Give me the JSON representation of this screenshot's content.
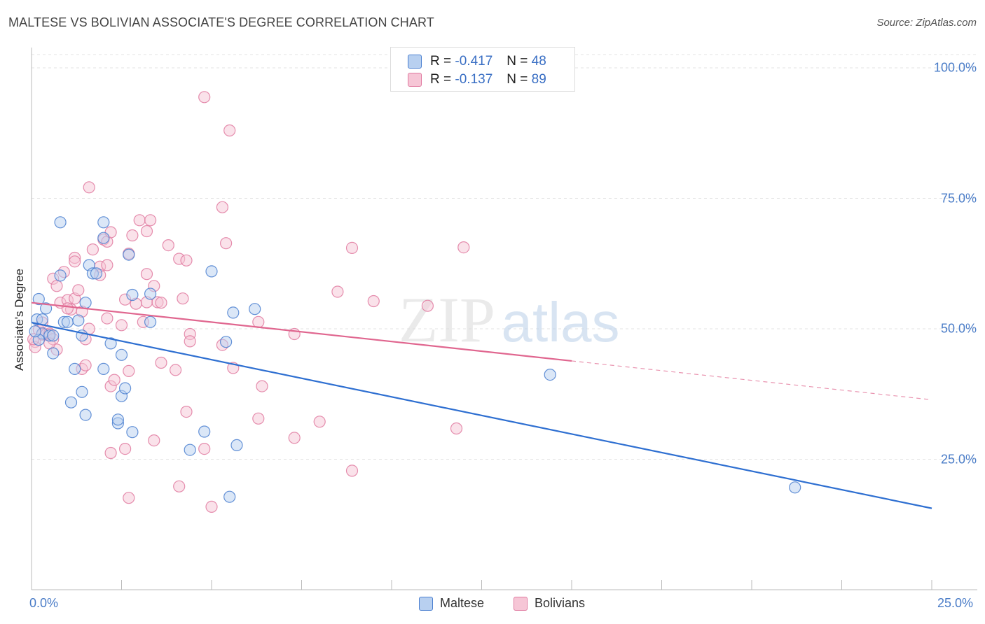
{
  "header": {
    "title": "MALTESE VS BOLIVIAN ASSOCIATE'S DEGREE CORRELATION CHART",
    "source": "Source: ZipAtlas.com"
  },
  "colors": {
    "maltese": "#4a7fd0",
    "maltese_fill": "#b8d0f0",
    "bolivians": "#e07aa0",
    "bolivians_fill": "#f6c6d6",
    "axis_text": "#4a7cc7"
  },
  "legend": {
    "maltese": {
      "r_label": "R =",
      "r_value": "-0.417",
      "n_label": "N =",
      "n_value": "48"
    },
    "bolivians": {
      "r_label": "R =",
      "r_value": "-0.137",
      "n_label": "N =",
      "n_value": "89"
    }
  },
  "bottom_legend": {
    "maltese": "Maltese",
    "bolivians": "Bolivians"
  },
  "chart_data": {
    "type": "scatter",
    "title": "MALTESE VS BOLIVIAN ASSOCIATE'S DEGREE CORRELATION CHART",
    "xlabel": "",
    "ylabel": "Associate's Degree",
    "xlim": [
      0,
      25
    ],
    "ylim": [
      0,
      102
    ],
    "y_ticks": [
      {
        "value": 100,
        "label": "100.0%"
      },
      {
        "value": 75,
        "label": "75.0%"
      },
      {
        "value": 50,
        "label": "50.0%"
      },
      {
        "value": 25,
        "label": "25.0%"
      }
    ],
    "x_tick_labels": {
      "left": "0.0%",
      "right": "25.0%"
    },
    "watermark": {
      "zip": "ZIP",
      "atlas": "atlas"
    },
    "series": [
      {
        "name": "Maltese",
        "trend": {
          "x0": 0,
          "y0": 51.2,
          "x1": 25,
          "y1": 15.6,
          "dashed_from": null
        },
        "points": [
          [
            0.2,
            55.7
          ],
          [
            0.15,
            51.8
          ],
          [
            0.3,
            51.8
          ],
          [
            0.4,
            53.9
          ],
          [
            0.3,
            49.1
          ],
          [
            0.5,
            48.7
          ],
          [
            0.2,
            47.9
          ],
          [
            0.6,
            48.7
          ],
          [
            0.6,
            45.3
          ],
          [
            0.9,
            51.3
          ],
          [
            1.0,
            51.3
          ],
          [
            1.3,
            51.6
          ],
          [
            1.4,
            48.7
          ],
          [
            0.8,
            60.2
          ],
          [
            0.8,
            70.4
          ],
          [
            1.5,
            55.0
          ],
          [
            1.6,
            62.2
          ],
          [
            1.7,
            60.6
          ],
          [
            1.8,
            60.6
          ],
          [
            2.0,
            70.4
          ],
          [
            2.0,
            67.4
          ],
          [
            2.7,
            64.2
          ],
          [
            2.8,
            56.5
          ],
          [
            3.3,
            56.7
          ],
          [
            3.3,
            51.3
          ],
          [
            2.2,
            47.2
          ],
          [
            2.5,
            45.0
          ],
          [
            1.2,
            42.3
          ],
          [
            2.0,
            42.3
          ],
          [
            1.4,
            37.9
          ],
          [
            1.1,
            35.9
          ],
          [
            1.5,
            33.5
          ],
          [
            2.5,
            37.1
          ],
          [
            2.6,
            38.6
          ],
          [
            2.4,
            31.9
          ],
          [
            2.4,
            32.6
          ],
          [
            2.8,
            30.2
          ],
          [
            5.0,
            61.0
          ],
          [
            5.6,
            53.1
          ],
          [
            6.2,
            53.8
          ],
          [
            5.4,
            47.5
          ],
          [
            4.8,
            30.3
          ],
          [
            4.4,
            26.8
          ],
          [
            5.7,
            27.7
          ],
          [
            5.5,
            17.8
          ],
          [
            14.4,
            41.2
          ],
          [
            21.2,
            19.6
          ],
          [
            0.1,
            49.5
          ]
        ]
      },
      {
        "name": "Bolivians",
        "trend": {
          "x0": 0,
          "y0": 55.0,
          "x1": 25,
          "y1": 36.4,
          "dashed_from": 15
        },
        "points": [
          [
            0.1,
            47.5
          ],
          [
            0.1,
            46.5
          ],
          [
            0.2,
            49.8
          ],
          [
            0.3,
            48.9
          ],
          [
            0.4,
            48.9
          ],
          [
            0.5,
            48.9
          ],
          [
            0.5,
            49.1
          ],
          [
            0.6,
            48.0
          ],
          [
            0.7,
            46.0
          ],
          [
            0.6,
            59.6
          ],
          [
            0.7,
            58.2
          ],
          [
            0.9,
            60.9
          ],
          [
            0.8,
            55.0
          ],
          [
            1.0,
            55.5
          ],
          [
            1.1,
            53.7
          ],
          [
            1.2,
            55.8
          ],
          [
            1.3,
            57.4
          ],
          [
            1.4,
            53.3
          ],
          [
            1.2,
            63.6
          ],
          [
            1.2,
            62.9
          ],
          [
            1.4,
            42.3
          ],
          [
            1.5,
            43.0
          ],
          [
            1.6,
            50.0
          ],
          [
            1.7,
            65.2
          ],
          [
            1.9,
            61.9
          ],
          [
            1.9,
            60.3
          ],
          [
            2.0,
            67.1
          ],
          [
            2.1,
            66.7
          ],
          [
            2.1,
            62.2
          ],
          [
            2.1,
            52.0
          ],
          [
            2.2,
            68.5
          ],
          [
            1.6,
            77.1
          ],
          [
            2.2,
            39.0
          ],
          [
            2.3,
            40.2
          ],
          [
            2.7,
            41.9
          ],
          [
            2.5,
            50.7
          ],
          [
            2.6,
            55.6
          ],
          [
            2.8,
            67.9
          ],
          [
            2.7,
            64.4
          ],
          [
            3.0,
            70.8
          ],
          [
            3.2,
            68.7
          ],
          [
            3.3,
            70.8
          ],
          [
            3.2,
            60.5
          ],
          [
            3.4,
            58.2
          ],
          [
            3.2,
            55.1
          ],
          [
            3.5,
            55.1
          ],
          [
            3.6,
            55.0
          ],
          [
            3.1,
            51.3
          ],
          [
            3.8,
            66.0
          ],
          [
            4.1,
            63.4
          ],
          [
            4.3,
            63.1
          ],
          [
            4.2,
            55.8
          ],
          [
            3.6,
            43.5
          ],
          [
            4.0,
            42.1
          ],
          [
            4.4,
            49.0
          ],
          [
            4.4,
            47.6
          ],
          [
            4.3,
            34.1
          ],
          [
            3.4,
            28.6
          ],
          [
            4.1,
            19.8
          ],
          [
            4.8,
            27.0
          ],
          [
            2.2,
            26.2
          ],
          [
            2.6,
            27.0
          ],
          [
            2.7,
            17.6
          ],
          [
            5.0,
            15.9
          ],
          [
            4.8,
            94.4
          ],
          [
            5.5,
            88.0
          ],
          [
            5.3,
            73.3
          ],
          [
            5.4,
            66.4
          ],
          [
            5.3,
            46.9
          ],
          [
            5.6,
            42.5
          ],
          [
            6.3,
            51.3
          ],
          [
            6.4,
            39.0
          ],
          [
            6.3,
            32.8
          ],
          [
            7.3,
            49.0
          ],
          [
            7.3,
            29.1
          ],
          [
            8.0,
            32.2
          ],
          [
            8.5,
            57.1
          ],
          [
            8.9,
            65.5
          ],
          [
            8.9,
            22.8
          ],
          [
            9.5,
            55.3
          ],
          [
            11.0,
            54.4
          ],
          [
            11.8,
            30.9
          ],
          [
            12.0,
            65.6
          ],
          [
            0.3,
            51.2
          ],
          [
            0.5,
            47.2
          ],
          [
            1.0,
            53.9
          ],
          [
            1.5,
            48.0
          ],
          [
            2.9,
            54.8
          ],
          [
            0.05,
            48.0
          ]
        ]
      }
    ]
  }
}
